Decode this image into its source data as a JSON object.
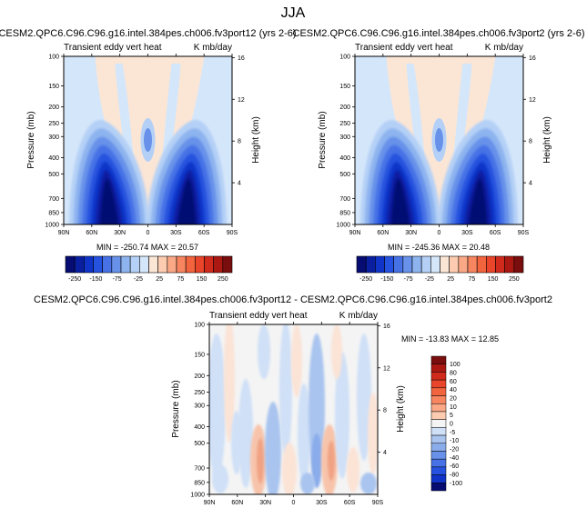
{
  "page": {
    "title": "JJA"
  },
  "colors": {
    "bg_pale_blue": "#d4e6fa",
    "blue_scale": [
      "#d4e6fa",
      "#b4d0f6",
      "#8eb4ef",
      "#6892ea",
      "#4672e6",
      "#2552de",
      "#1034c8",
      "#0a1fa0",
      "#060c72"
    ],
    "pale_peach": "#fbe6d6",
    "red_scale": [
      "#fbe6d6",
      "#fccbb0",
      "#faa886",
      "#f78660",
      "#f2643e",
      "#e8452a",
      "#d02a1c",
      "#ab1812",
      "#7a0d0d"
    ],
    "neutral": "#f4f4f4"
  },
  "panels": [
    {
      "id": "top-left",
      "header": "CESM2.QPC6.C96.C96.g16.intel.384pes.ch006.fv3port12 (yrs 2-6)",
      "field": "Transient eddy vert heat",
      "units": "K mb/day",
      "ylabel": "Pressure (mb)",
      "rlabel": "Height (km)",
      "min": "-250.74",
      "max": "20.57",
      "minmax_text": "MIN = -250.74   MAX = 20.57"
    },
    {
      "id": "top-right",
      "header": "CESM2.QPC6.C96.C96.g16.intel.384pes.ch006.fv3port2 (yrs 2-6)",
      "field": "Transient eddy vert heat",
      "units": "K mb/day",
      "ylabel": "Pressure (mb)",
      "rlabel": "Height (km)",
      "min": "-245.36",
      "max": "20.48",
      "minmax_text": "MIN = -245.36   MAX = 20.48"
    },
    {
      "id": "bottom",
      "header": "CESM2.QPC6.C96.C96.g16.intel.384pes.ch006.fv3port12 - CESM2.QPC6.C96.C96.g16.intel.384pes.ch006.fv3port2",
      "field": "Transient eddy vert heat",
      "units": "K mb/day",
      "ylabel": "Pressure (mb)",
      "rlabel": "Height (km)",
      "min": "-13.83",
      "max": "12.85",
      "minmax_text": "MIN = -13.83   MAX = 12.85"
    }
  ],
  "chart_data": [
    {
      "type": "heatmap",
      "title": "Transient eddy vert heat",
      "units": "K mb/day",
      "xlabel": "",
      "ylabel": "Pressure (mb)",
      "y2label": "Height (km)",
      "x_ticks": [
        "90N",
        "60N",
        "30N",
        "0",
        "30S",
        "60S",
        "90S"
      ],
      "y_ticks": [
        "100",
        "150",
        "200",
        "250",
        "300",
        "400",
        "500",
        "700",
        "850",
        "1000"
      ],
      "y2_ticks": [
        "4",
        "8",
        "12",
        "16"
      ],
      "y_scale": "log-pressure",
      "ylim": [
        1000,
        100
      ],
      "contour_levels": [
        -250,
        -225,
        -200,
        -175,
        -150,
        -125,
        -100,
        -75,
        -50,
        -25,
        0,
        25,
        50,
        75,
        100,
        125,
        150,
        175,
        200,
        225,
        250
      ],
      "colorbar_labels": [
        "-250",
        "-150",
        "-75",
        "-25",
        "25",
        "75",
        "150",
        "250"
      ],
      "min": -250.74,
      "max": 20.57,
      "features": [
        {
          "kind": "minimum",
          "lat": "~40N",
          "pressure_mb": 800,
          "value": -250
        },
        {
          "kind": "minimum",
          "lat": "~40S",
          "pressure_mb": 800,
          "value": -250
        }
      ]
    },
    {
      "type": "heatmap",
      "title": "Transient eddy vert heat",
      "units": "K mb/day",
      "xlabel": "",
      "ylabel": "Pressure (mb)",
      "y2label": "Height (km)",
      "x_ticks": [
        "90N",
        "60N",
        "30N",
        "0",
        "30S",
        "60S",
        "90S"
      ],
      "y_ticks": [
        "100",
        "150",
        "200",
        "250",
        "300",
        "400",
        "500",
        "700",
        "850",
        "1000"
      ],
      "y2_ticks": [
        "4",
        "8",
        "12",
        "16"
      ],
      "y_scale": "log-pressure",
      "ylim": [
        1000,
        100
      ],
      "contour_levels": [
        -250,
        -225,
        -200,
        -175,
        -150,
        -125,
        -100,
        -75,
        -50,
        -25,
        0,
        25,
        50,
        75,
        100,
        125,
        150,
        175,
        200,
        225,
        250
      ],
      "colorbar_labels": [
        "-250",
        "-150",
        "-75",
        "-25",
        "25",
        "75",
        "150",
        "250"
      ],
      "min": -245.36,
      "max": 20.48
    },
    {
      "type": "heatmap",
      "title": "Transient eddy vert heat",
      "units": "K mb/day",
      "xlabel": "",
      "ylabel": "Pressure (mb)",
      "y2label": "Height (km)",
      "x_ticks": [
        "90N",
        "60N",
        "30N",
        "0",
        "30S",
        "60S",
        "90S"
      ],
      "y_ticks": [
        "100",
        "150",
        "200",
        "250",
        "300",
        "400",
        "500",
        "700",
        "850",
        "1000"
      ],
      "y2_ticks": [
        "4",
        "8",
        "12",
        "16"
      ],
      "y_scale": "log-pressure",
      "ylim": [
        1000,
        100
      ],
      "colorbar_labels": [
        "100",
        "80",
        "60",
        "40",
        "20",
        "10",
        "5",
        "0",
        "-5",
        "-10",
        "-20",
        "-40",
        "-60",
        "-80",
        "-100"
      ],
      "min": -13.83,
      "max": 12.85
    }
  ]
}
